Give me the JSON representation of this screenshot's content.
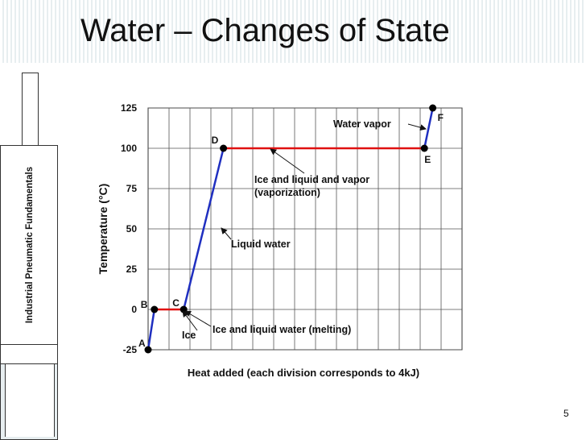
{
  "slide": {
    "title": "Water – Changes of State",
    "sidebar_label": "Industrial Pneumatic Fundamentals",
    "page_number": "5"
  },
  "colors": {
    "solid_phase": "#1f2fc0",
    "transition_phase": "#e01010",
    "point": "#000000",
    "grid": "#555555"
  },
  "chart_data": {
    "type": "line",
    "title": "",
    "xlabel": "Heat added (each division corresponds to 4kJ)",
    "ylabel": "Temperature (°C)",
    "xlim": [
      0,
      15
    ],
    "ylim": [
      -25,
      125
    ],
    "yticks": [
      -25,
      0,
      25,
      50,
      75,
      100,
      125
    ],
    "x_gridlines": 15,
    "grid": true,
    "points": [
      {
        "label": "A",
        "x": 0.0,
        "y": -25
      },
      {
        "label": "B",
        "x": 0.3,
        "y": 0
      },
      {
        "label": "C",
        "x": 1.7,
        "y": 0
      },
      {
        "label": "D",
        "x": 3.6,
        "y": 100
      },
      {
        "label": "E",
        "x": 13.2,
        "y": 100
      },
      {
        "label": "F",
        "x": 13.6,
        "y": 125
      }
    ],
    "segments": [
      {
        "from": "A",
        "to": "B",
        "phase": "solid"
      },
      {
        "from": "B",
        "to": "C",
        "phase": "transition"
      },
      {
        "from": "C",
        "to": "D",
        "phase": "solid"
      },
      {
        "from": "D",
        "to": "E",
        "phase": "transition"
      },
      {
        "from": "E",
        "to": "F",
        "phase": "solid"
      }
    ],
    "annotations": [
      {
        "id": "ice",
        "text": "Ice",
        "lines": [
          "Ice"
        ]
      },
      {
        "id": "melting",
        "text": "Ice and liquid water (melting)",
        "lines": [
          "Ice and liquid water (melting)"
        ]
      },
      {
        "id": "liquid",
        "text": "Liquid water",
        "lines": [
          "Liquid water"
        ]
      },
      {
        "id": "vaporization",
        "text": "Ice and liquid and vapor (vaporization)",
        "lines": [
          "Ice and liquid and vapor",
          "(vaporization)"
        ]
      },
      {
        "id": "vapor",
        "text": "Water vapor",
        "lines": [
          "Water vapor"
        ]
      }
    ]
  }
}
